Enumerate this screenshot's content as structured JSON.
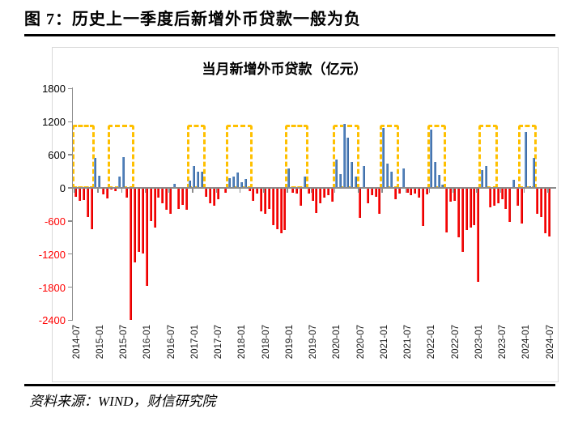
{
  "page": {
    "figure_title": "图 7：历史上一季度后新增外币贷款一般为负",
    "source_text": "资料来源：WIND，财信研究院"
  },
  "chart_data": {
    "type": "bar",
    "title": "当月新增外币贷款（亿元）",
    "unit": "亿元",
    "grid": false,
    "legend": "none",
    "ylim": [
      -2400,
      1800
    ],
    "yticks": [
      1800,
      1200,
      600,
      0,
      -600,
      -1200,
      -1800,
      -2400
    ],
    "x_tick_labels": [
      "2014-07",
      "2015-01",
      "2015-07",
      "2016-01",
      "2016-07",
      "2017-01",
      "2017-07",
      "2018-01",
      "2018-07",
      "2019-01",
      "2019-07",
      "2020-01",
      "2020-07",
      "2021-01",
      "2021-07",
      "2022-01",
      "2022-07",
      "2023-01",
      "2023-07",
      "2024-01",
      "2024-07"
    ],
    "x": [
      "2014-07",
      "2014-08",
      "2014-09",
      "2014-10",
      "2014-11",
      "2014-12",
      "2015-01",
      "2015-02",
      "2015-03",
      "2015-04",
      "2015-05",
      "2015-06",
      "2015-07",
      "2015-08",
      "2015-09",
      "2015-10",
      "2015-11",
      "2015-12",
      "2016-01",
      "2016-02",
      "2016-03",
      "2016-04",
      "2016-05",
      "2016-06",
      "2016-07",
      "2016-08",
      "2016-09",
      "2016-10",
      "2016-11",
      "2016-12",
      "2017-01",
      "2017-02",
      "2017-03",
      "2017-04",
      "2017-05",
      "2017-06",
      "2017-07",
      "2017-08",
      "2017-09",
      "2017-10",
      "2017-11",
      "2017-12",
      "2018-01",
      "2018-02",
      "2018-03",
      "2018-04",
      "2018-05",
      "2018-06",
      "2018-07",
      "2018-08",
      "2018-09",
      "2018-10",
      "2018-11",
      "2018-12",
      "2019-01",
      "2019-02",
      "2019-03",
      "2019-04",
      "2019-05",
      "2019-06",
      "2019-07",
      "2019-08",
      "2019-09",
      "2019-10",
      "2019-11",
      "2019-12",
      "2020-01",
      "2020-02",
      "2020-03",
      "2020-04",
      "2020-05",
      "2020-06",
      "2020-07",
      "2020-08",
      "2020-09",
      "2020-10",
      "2020-11",
      "2020-12",
      "2021-01",
      "2021-02",
      "2021-03",
      "2021-04",
      "2021-05",
      "2021-06",
      "2021-07",
      "2021-08",
      "2021-09",
      "2021-10",
      "2021-11",
      "2021-12",
      "2022-01",
      "2022-02",
      "2022-03",
      "2022-04",
      "2022-05",
      "2022-06",
      "2022-07",
      "2022-08",
      "2022-09",
      "2022-10",
      "2022-11",
      "2022-12",
      "2023-01",
      "2023-02",
      "2023-03",
      "2023-04",
      "2023-05",
      "2023-06",
      "2023-07",
      "2023-08",
      "2023-09",
      "2023-10",
      "2023-11",
      "2023-12",
      "2024-01",
      "2024-02",
      "2024-03",
      "2024-04",
      "2024-05",
      "2024-06",
      "2024-07"
    ],
    "values": [
      -140,
      -220,
      -200,
      -510,
      -730,
      540,
      225,
      -100,
      -180,
      -20,
      -50,
      200,
      565,
      -165,
      -2380,
      -1340,
      -1145,
      -1170,
      -1755,
      -582,
      -704,
      -166,
      -265,
      -385,
      -460,
      70,
      -360,
      -290,
      -386,
      127,
      396,
      298,
      295,
      -142,
      -264,
      -313,
      -191,
      20,
      -80,
      176,
      200,
      274,
      103,
      161,
      -44,
      -215,
      -93,
      -411,
      -460,
      -362,
      -655,
      -728,
      -802,
      -750,
      347,
      -68,
      -93,
      -313,
      200,
      -93,
      -215,
      -435,
      -264,
      -166,
      -117,
      -240,
      518,
      249,
      1154,
      909,
      469,
      200,
      -533,
      395,
      -264,
      -117,
      -142,
      -459,
      1081,
      445,
      298,
      -191,
      -93,
      347,
      -68,
      -117,
      -93,
      -166,
      -670,
      -100,
      1056,
      469,
      235,
      54,
      -800,
      -240,
      -215,
      -875,
      -1144,
      -753,
      -704,
      -655,
      -1682,
      323,
      396,
      -337,
      -313,
      -264,
      -191,
      -362,
      -606,
      152,
      -313,
      -631,
      1007,
      30,
      543,
      -460,
      -509,
      -802,
      -870
    ],
    "highlight_boxes": [
      {
        "from": "2014-07",
        "to": "2014-11",
        "top": 1140
      },
      {
        "from": "2015-04",
        "to": "2015-09",
        "top": 1140
      },
      {
        "from": "2016-12",
        "to": "2017-03",
        "top": 1140
      },
      {
        "from": "2017-10",
        "to": "2018-03",
        "top": 1140
      },
      {
        "from": "2019-01",
        "to": "2019-05",
        "top": 1140
      },
      {
        "from": "2020-01",
        "to": "2020-06",
        "top": 1140
      },
      {
        "from": "2021-01",
        "to": "2021-04",
        "top": 1140
      },
      {
        "from": "2022-01",
        "to": "2022-04",
        "top": 1140
      },
      {
        "from": "2023-02",
        "to": "2023-05",
        "top": 1140
      },
      {
        "from": "2023-12",
        "to": "2024-03",
        "top": 1140
      }
    ],
    "colors": {
      "bar_positive": "#4f81bd",
      "bar_negative": "#ff0000",
      "highlight_box": "#ffc000",
      "axis": "#8c8c8c",
      "negative_tick_label": "#ff0000"
    }
  }
}
